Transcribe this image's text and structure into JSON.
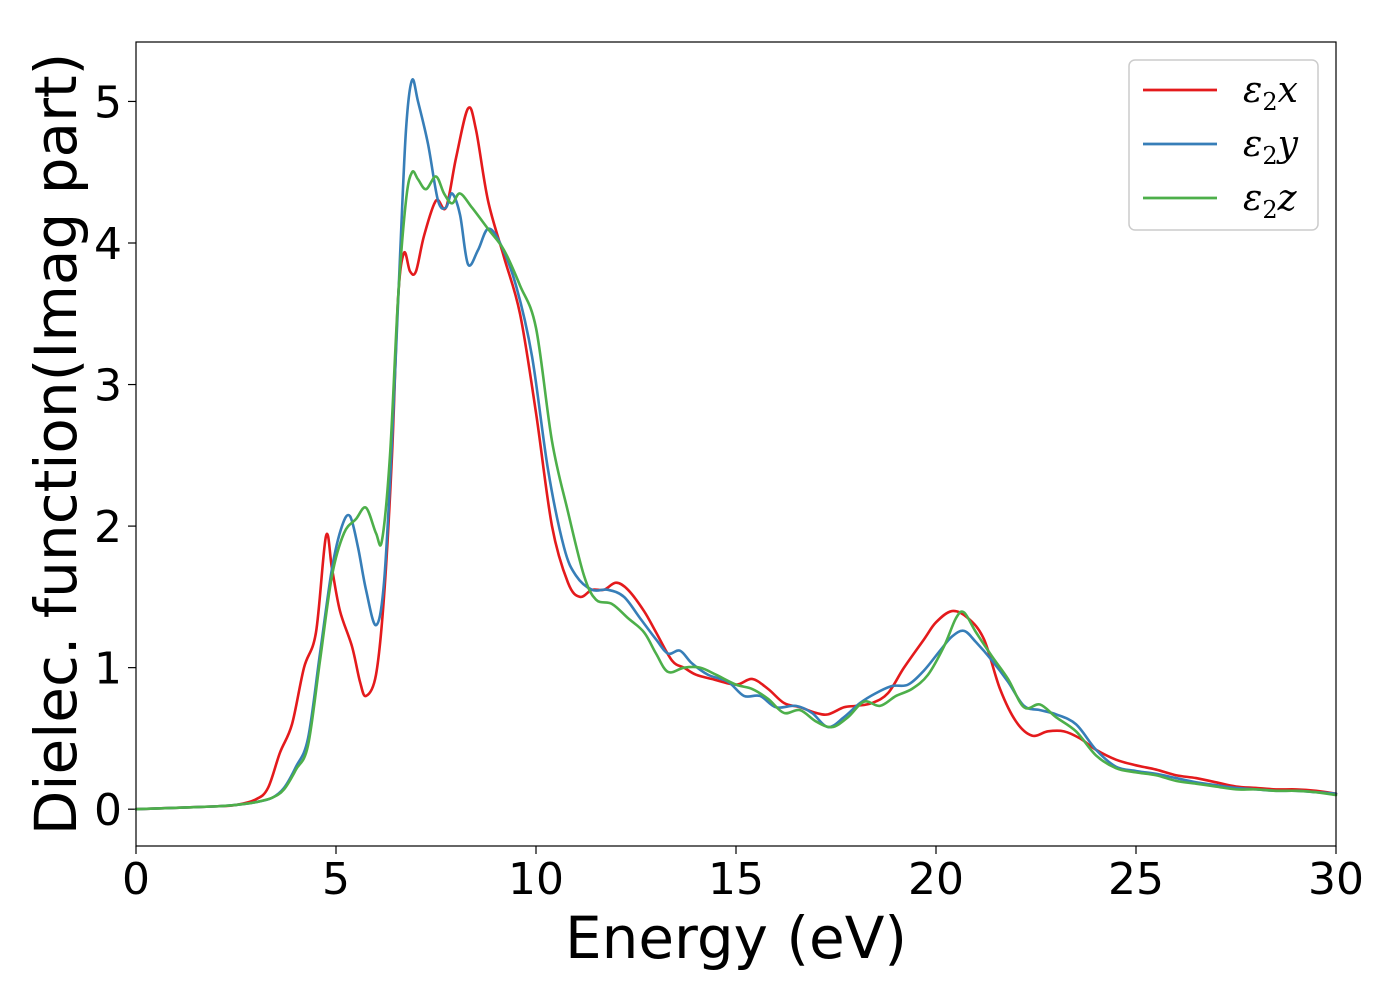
{
  "chart_data": {
    "type": "line",
    "xlabel": "Energy (eV)",
    "ylabel": "Dielec. function(Imag part)",
    "xlim": [
      0,
      30
    ],
    "ylim": [
      -0.26,
      5.42
    ],
    "xticks": [
      0,
      5,
      10,
      15,
      20,
      25,
      30
    ],
    "yticks": [
      0,
      1,
      2,
      3,
      4,
      5
    ],
    "xtick_labels": [
      "0",
      "5",
      "10",
      "15",
      "20",
      "25",
      "30"
    ],
    "ytick_labels": [
      "0",
      "1",
      "2",
      "3",
      "4",
      "5"
    ],
    "grid": false,
    "legend_position": "top-right",
    "series": [
      {
        "name": "ε2x",
        "legend": {
          "base": "ε",
          "sub": "2",
          "var": "x"
        },
        "color": "#e41a1c",
        "points": [
          [
            0,
            0
          ],
          [
            1,
            0.01
          ],
          [
            2,
            0.02
          ],
          [
            2.5,
            0.03
          ],
          [
            3,
            0.07
          ],
          [
            3.3,
            0.15
          ],
          [
            3.6,
            0.4
          ],
          [
            3.9,
            0.6
          ],
          [
            4.2,
            1.0
          ],
          [
            4.5,
            1.25
          ],
          [
            4.75,
            1.93
          ],
          [
            4.9,
            1.7
          ],
          [
            5.1,
            1.4
          ],
          [
            5.4,
            1.15
          ],
          [
            5.6,
            0.9
          ],
          [
            5.75,
            0.8
          ],
          [
            6.0,
            0.95
          ],
          [
            6.2,
            1.5
          ],
          [
            6.4,
            2.5
          ],
          [
            6.55,
            3.6
          ],
          [
            6.7,
            3.93
          ],
          [
            6.85,
            3.8
          ],
          [
            7.0,
            3.8
          ],
          [
            7.2,
            4.05
          ],
          [
            7.5,
            4.3
          ],
          [
            7.75,
            4.25
          ],
          [
            8.0,
            4.6
          ],
          [
            8.3,
            4.95
          ],
          [
            8.5,
            4.8
          ],
          [
            8.8,
            4.3
          ],
          [
            9.2,
            3.9
          ],
          [
            9.6,
            3.5
          ],
          [
            10.0,
            2.8
          ],
          [
            10.4,
            2.0
          ],
          [
            10.8,
            1.6
          ],
          [
            11.1,
            1.5
          ],
          [
            11.4,
            1.55
          ],
          [
            11.7,
            1.55
          ],
          [
            12.0,
            1.6
          ],
          [
            12.3,
            1.55
          ],
          [
            12.7,
            1.4
          ],
          [
            13.0,
            1.25
          ],
          [
            13.4,
            1.05
          ],
          [
            13.7,
            1.0
          ],
          [
            14.0,
            0.95
          ],
          [
            14.4,
            0.92
          ],
          [
            15.0,
            0.88
          ],
          [
            15.4,
            0.92
          ],
          [
            15.8,
            0.85
          ],
          [
            16.2,
            0.75
          ],
          [
            16.6,
            0.72
          ],
          [
            17.0,
            0.68
          ],
          [
            17.3,
            0.67
          ],
          [
            17.7,
            0.72
          ],
          [
            18.0,
            0.73
          ],
          [
            18.4,
            0.75
          ],
          [
            18.8,
            0.82
          ],
          [
            19.2,
            1.0
          ],
          [
            19.7,
            1.2
          ],
          [
            20.0,
            1.32
          ],
          [
            20.4,
            1.4
          ],
          [
            20.8,
            1.35
          ],
          [
            21.2,
            1.2
          ],
          [
            21.6,
            0.85
          ],
          [
            22.0,
            0.62
          ],
          [
            22.4,
            0.52
          ],
          [
            22.8,
            0.55
          ],
          [
            23.2,
            0.55
          ],
          [
            23.6,
            0.5
          ],
          [
            24.0,
            0.42
          ],
          [
            24.5,
            0.35
          ],
          [
            25.0,
            0.31
          ],
          [
            25.5,
            0.28
          ],
          [
            26.0,
            0.24
          ],
          [
            26.5,
            0.22
          ],
          [
            27.0,
            0.19
          ],
          [
            27.5,
            0.16
          ],
          [
            28.0,
            0.15
          ],
          [
            28.5,
            0.14
          ],
          [
            29.0,
            0.14
          ],
          [
            29.5,
            0.13
          ],
          [
            30.0,
            0.11
          ]
        ]
      },
      {
        "name": "ε2y",
        "legend": {
          "base": "ε",
          "sub": "2",
          "var": "y"
        },
        "color": "#377eb8",
        "points": [
          [
            0,
            0
          ],
          [
            1,
            0.01
          ],
          [
            2,
            0.02
          ],
          [
            2.5,
            0.03
          ],
          [
            3,
            0.05
          ],
          [
            3.4,
            0.08
          ],
          [
            3.7,
            0.15
          ],
          [
            4.0,
            0.3
          ],
          [
            4.3,
            0.5
          ],
          [
            4.6,
            1.1
          ],
          [
            4.9,
            1.7
          ],
          [
            5.15,
            2.0
          ],
          [
            5.35,
            2.07
          ],
          [
            5.55,
            1.85
          ],
          [
            5.75,
            1.55
          ],
          [
            6.0,
            1.3
          ],
          [
            6.2,
            1.6
          ],
          [
            6.4,
            2.6
          ],
          [
            6.6,
            3.9
          ],
          [
            6.75,
            4.8
          ],
          [
            6.9,
            5.15
          ],
          [
            7.05,
            5.0
          ],
          [
            7.3,
            4.7
          ],
          [
            7.55,
            4.3
          ],
          [
            7.75,
            4.25
          ],
          [
            7.9,
            4.35
          ],
          [
            8.1,
            4.2
          ],
          [
            8.3,
            3.85
          ],
          [
            8.55,
            3.95
          ],
          [
            8.8,
            4.1
          ],
          [
            9.1,
            4.0
          ],
          [
            9.5,
            3.7
          ],
          [
            9.9,
            3.2
          ],
          [
            10.3,
            2.4
          ],
          [
            10.7,
            1.85
          ],
          [
            11.0,
            1.65
          ],
          [
            11.4,
            1.55
          ],
          [
            11.8,
            1.55
          ],
          [
            12.2,
            1.5
          ],
          [
            12.6,
            1.35
          ],
          [
            13.0,
            1.2
          ],
          [
            13.3,
            1.1
          ],
          [
            13.6,
            1.12
          ],
          [
            13.9,
            1.03
          ],
          [
            14.3,
            0.95
          ],
          [
            14.8,
            0.9
          ],
          [
            15.2,
            0.8
          ],
          [
            15.6,
            0.8
          ],
          [
            16.0,
            0.72
          ],
          [
            16.5,
            0.73
          ],
          [
            16.9,
            0.68
          ],
          [
            17.3,
            0.58
          ],
          [
            17.7,
            0.65
          ],
          [
            18.1,
            0.75
          ],
          [
            18.5,
            0.82
          ],
          [
            18.9,
            0.87
          ],
          [
            19.3,
            0.88
          ],
          [
            19.7,
            0.98
          ],
          [
            20.1,
            1.12
          ],
          [
            20.4,
            1.22
          ],
          [
            20.7,
            1.26
          ],
          [
            21.0,
            1.18
          ],
          [
            21.4,
            1.05
          ],
          [
            21.8,
            0.9
          ],
          [
            22.2,
            0.73
          ],
          [
            22.6,
            0.7
          ],
          [
            23.0,
            0.67
          ],
          [
            23.5,
            0.6
          ],
          [
            24.0,
            0.42
          ],
          [
            24.5,
            0.3
          ],
          [
            25.0,
            0.27
          ],
          [
            25.5,
            0.25
          ],
          [
            26.0,
            0.22
          ],
          [
            26.5,
            0.19
          ],
          [
            27.0,
            0.17
          ],
          [
            27.5,
            0.15
          ],
          [
            28.0,
            0.14
          ],
          [
            28.5,
            0.13
          ],
          [
            29.0,
            0.13
          ],
          [
            29.5,
            0.12
          ],
          [
            30.0,
            0.11
          ]
        ]
      },
      {
        "name": "ε2z",
        "legend": {
          "base": "ε",
          "sub": "2",
          "var": "z"
        },
        "color": "#4daf4a",
        "points": [
          [
            0,
            0
          ],
          [
            1,
            0.01
          ],
          [
            2,
            0.02
          ],
          [
            2.5,
            0.03
          ],
          [
            3,
            0.05
          ],
          [
            3.4,
            0.08
          ],
          [
            3.7,
            0.14
          ],
          [
            4.0,
            0.28
          ],
          [
            4.3,
            0.45
          ],
          [
            4.6,
            1.05
          ],
          [
            4.9,
            1.65
          ],
          [
            5.2,
            1.95
          ],
          [
            5.5,
            2.05
          ],
          [
            5.75,
            2.13
          ],
          [
            6.0,
            1.95
          ],
          [
            6.15,
            1.9
          ],
          [
            6.35,
            2.5
          ],
          [
            6.55,
            3.6
          ],
          [
            6.75,
            4.3
          ],
          [
            6.9,
            4.5
          ],
          [
            7.05,
            4.45
          ],
          [
            7.25,
            4.38
          ],
          [
            7.5,
            4.47
          ],
          [
            7.7,
            4.35
          ],
          [
            7.9,
            4.28
          ],
          [
            8.1,
            4.35
          ],
          [
            8.4,
            4.25
          ],
          [
            8.8,
            4.1
          ],
          [
            9.2,
            3.95
          ],
          [
            9.6,
            3.7
          ],
          [
            10.0,
            3.4
          ],
          [
            10.4,
            2.6
          ],
          [
            10.8,
            2.1
          ],
          [
            11.2,
            1.65
          ],
          [
            11.5,
            1.48
          ],
          [
            11.9,
            1.45
          ],
          [
            12.3,
            1.35
          ],
          [
            12.7,
            1.25
          ],
          [
            13.0,
            1.1
          ],
          [
            13.3,
            0.97
          ],
          [
            13.7,
            1.0
          ],
          [
            14.1,
            1.0
          ],
          [
            14.5,
            0.95
          ],
          [
            15.0,
            0.88
          ],
          [
            15.4,
            0.85
          ],
          [
            15.8,
            0.78
          ],
          [
            16.2,
            0.68
          ],
          [
            16.6,
            0.7
          ],
          [
            17.0,
            0.62
          ],
          [
            17.4,
            0.58
          ],
          [
            17.8,
            0.65
          ],
          [
            18.2,
            0.76
          ],
          [
            18.6,
            0.73
          ],
          [
            19.0,
            0.8
          ],
          [
            19.4,
            0.85
          ],
          [
            19.8,
            0.95
          ],
          [
            20.2,
            1.15
          ],
          [
            20.5,
            1.35
          ],
          [
            20.7,
            1.39
          ],
          [
            21.0,
            1.25
          ],
          [
            21.4,
            1.08
          ],
          [
            21.8,
            0.92
          ],
          [
            22.2,
            0.72
          ],
          [
            22.6,
            0.74
          ],
          [
            23.0,
            0.65
          ],
          [
            23.5,
            0.55
          ],
          [
            24.0,
            0.38
          ],
          [
            24.5,
            0.29
          ],
          [
            25.0,
            0.26
          ],
          [
            25.5,
            0.24
          ],
          [
            26.0,
            0.2
          ],
          [
            26.5,
            0.18
          ],
          [
            27.0,
            0.16
          ],
          [
            27.5,
            0.14
          ],
          [
            28.0,
            0.14
          ],
          [
            28.5,
            0.13
          ],
          [
            29.0,
            0.13
          ],
          [
            29.5,
            0.12
          ],
          [
            30.0,
            0.1
          ]
        ]
      }
    ]
  }
}
